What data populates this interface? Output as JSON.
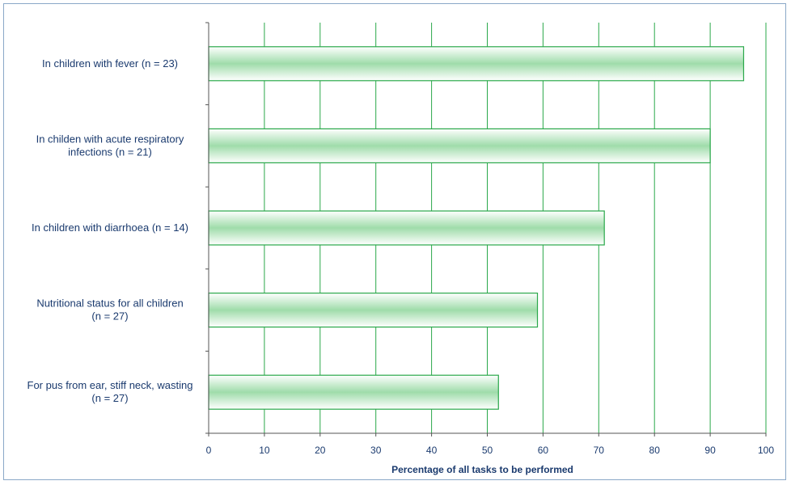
{
  "chart_data": {
    "type": "bar",
    "orientation": "horizontal",
    "categories": [
      [
        "In children with fever (n = 23)"
      ],
      [
        "In childen with acute respiratory",
        "infections (n = 21)"
      ],
      [
        "In children with diarrhoea (n = 14)"
      ],
      [
        "Nutritional status for all children",
        "(n = 27)"
      ],
      [
        "For pus from ear, stiff neck, wasting",
        "(n = 27)"
      ]
    ],
    "values": [
      96,
      90,
      71,
      59,
      52
    ],
    "xlabel": "Percentage of all tasks to be performed",
    "ylabel": "",
    "xlim": [
      0,
      100
    ],
    "xticks": [
      "0",
      "10",
      "20",
      "30",
      "40",
      "50",
      "60",
      "70",
      "80",
      "90",
      "100"
    ],
    "grid": "vertical",
    "colors": {
      "bar_fill_edge": "#ffffff",
      "bar_fill_mid": "#9fdcaa",
      "bar_border": "#2aa84a",
      "grid": "#2aa84a",
      "axis": "#555555",
      "text": "#1a3a6e"
    }
  }
}
